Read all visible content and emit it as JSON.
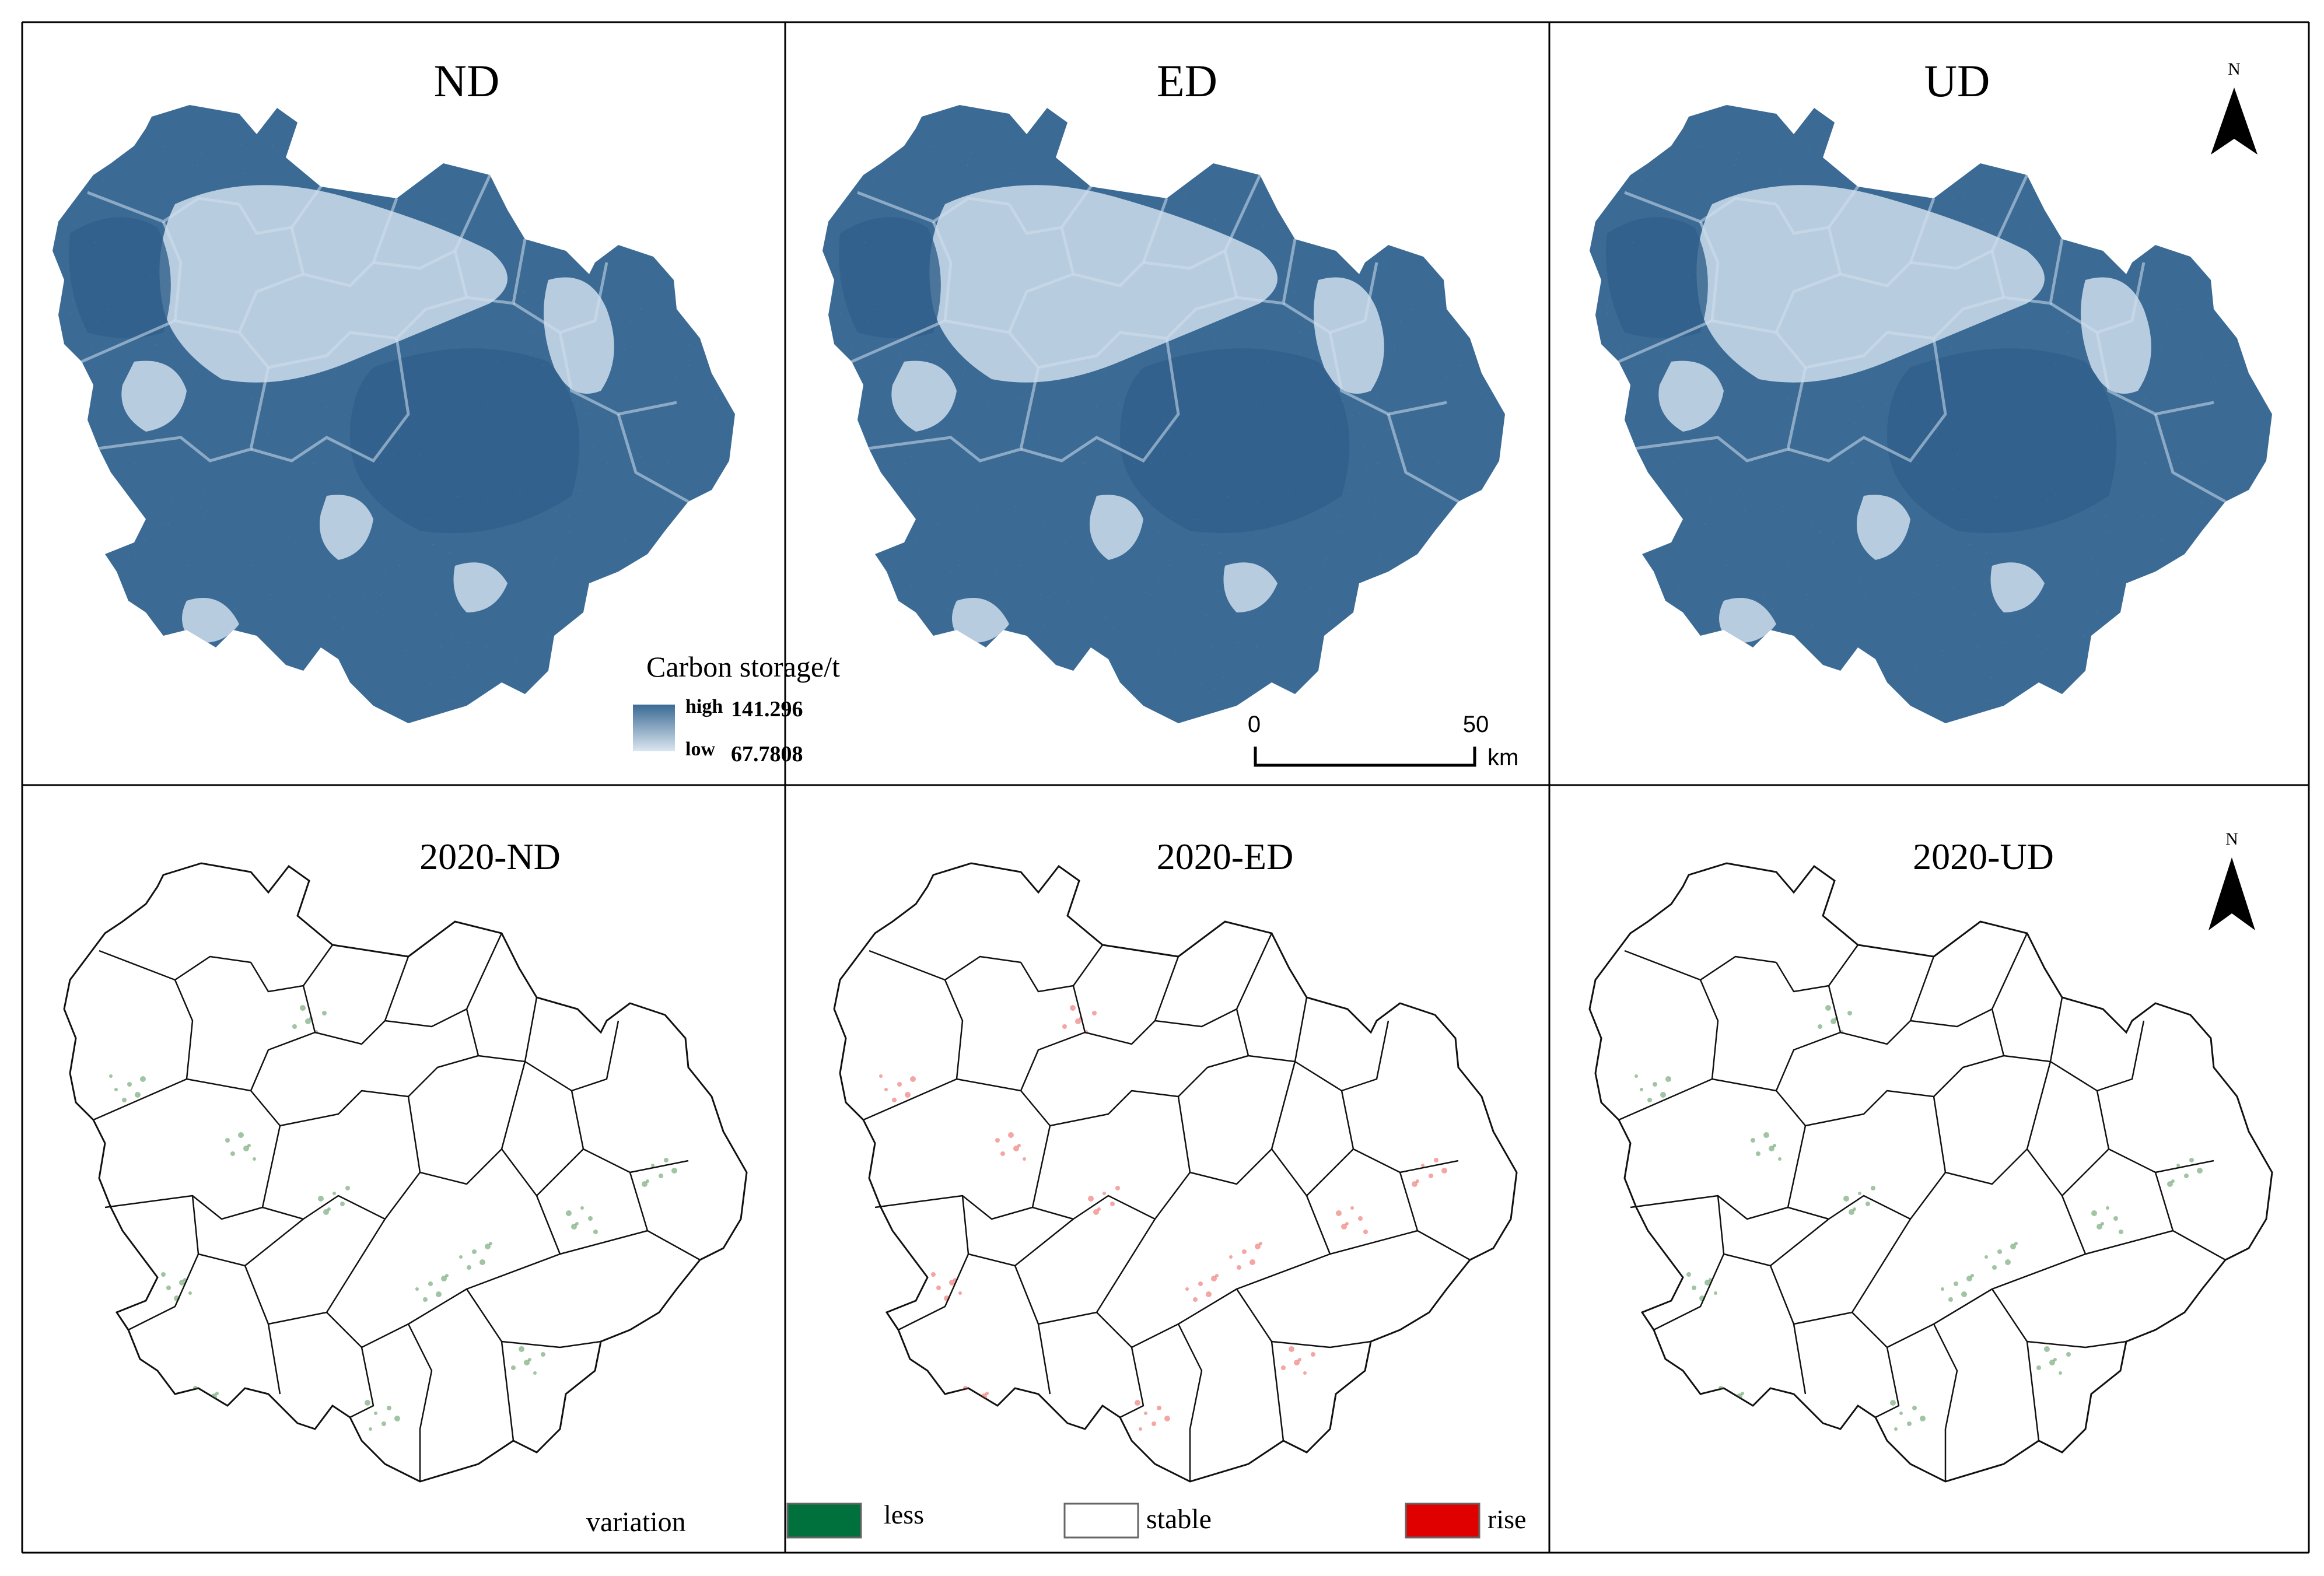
{
  "panels": [
    {
      "id": "nd",
      "title": "ND",
      "type": "carbon"
    },
    {
      "id": "ed",
      "title": "ED",
      "type": "carbon"
    },
    {
      "id": "ud",
      "title": "UD",
      "type": "carbon"
    },
    {
      "id": "nd2020",
      "title": "2020-ND",
      "type": "change",
      "tint": "#2e7d32"
    },
    {
      "id": "ed2020",
      "title": "2020-ED",
      "type": "change",
      "tint": "#e53935"
    },
    {
      "id": "ud2020",
      "title": "2020-UD",
      "type": "change",
      "tint": "#2e7d32"
    }
  ],
  "north_arrow": {
    "label": "N"
  },
  "carbon_legend": {
    "title": "Carbon storage/t",
    "high_label": "high",
    "high_value": "141.296",
    "low_label": "low",
    "low_value": "67.7808",
    "colors": {
      "high": "#3a6a94",
      "low": "#dbe6f0"
    }
  },
  "scale_bar": {
    "start": "0",
    "end": "50",
    "unit": "km"
  },
  "variation_legend": {
    "title": "variation",
    "items": [
      {
        "label": "less",
        "color": "#00703c"
      },
      {
        "label": "stable",
        "color": "#ffffff"
      },
      {
        "label": "rise",
        "color": "#e00000"
      }
    ]
  },
  "colors": {
    "carbon_dark": "#3b6b95",
    "carbon_light": "#c3d5e5",
    "boundary": "#111111"
  }
}
